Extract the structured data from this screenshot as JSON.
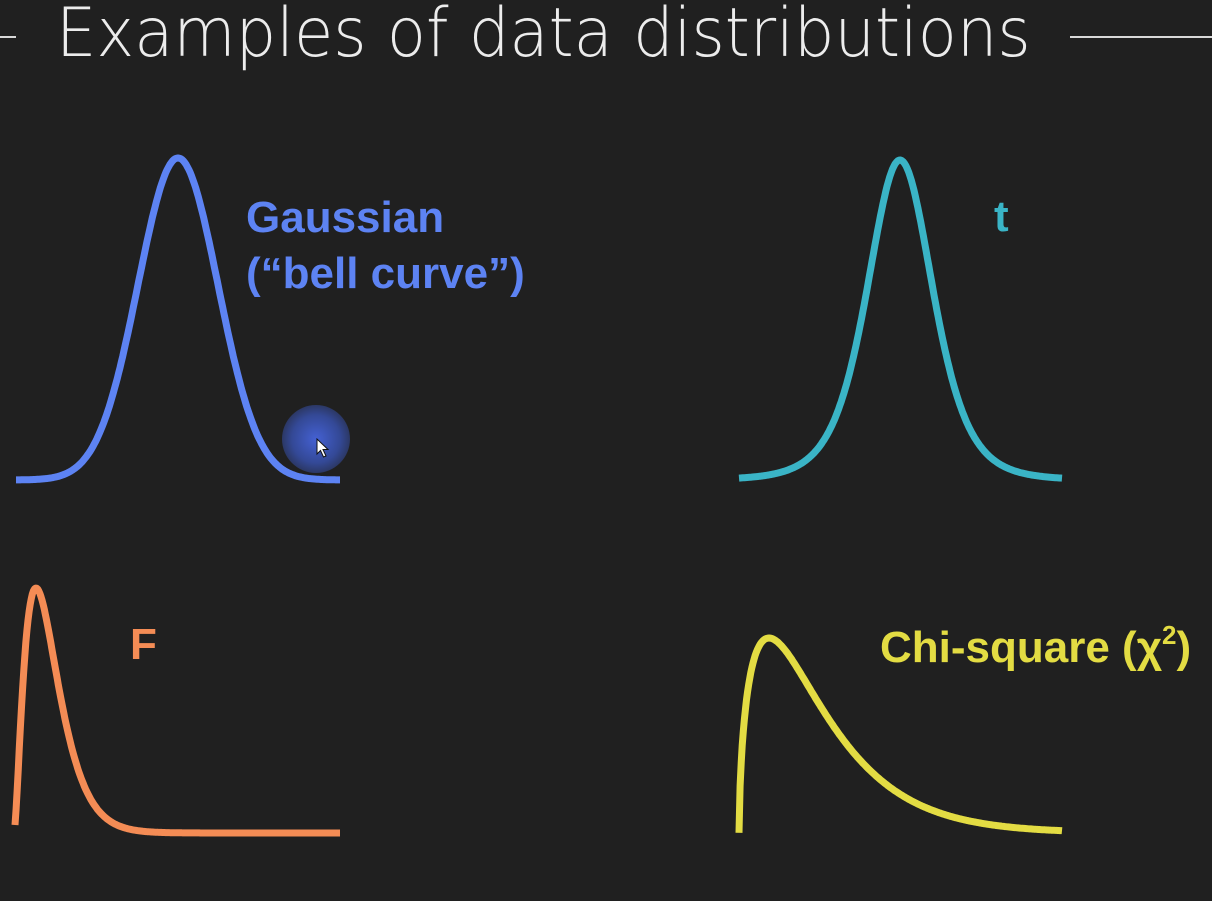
{
  "title": "Examples of data distributions",
  "distributions": [
    {
      "label_lines": [
        "Gaussian",
        "(“bell curve”)"
      ],
      "color": "#5d83f3",
      "icon": "gaussian-curve"
    },
    {
      "label": "t",
      "color": "#3ab4c6",
      "icon": "t-curve"
    },
    {
      "label": "F",
      "color": "#f48c55",
      "icon": "f-curve"
    },
    {
      "label": "Chi-square (χ",
      "superscript": "2",
      "label_suffix": ")",
      "color": "#e3dc43",
      "icon": "chi-square-curve"
    }
  ],
  "title_rule_color": "#d8d8d8",
  "background": "#202020"
}
